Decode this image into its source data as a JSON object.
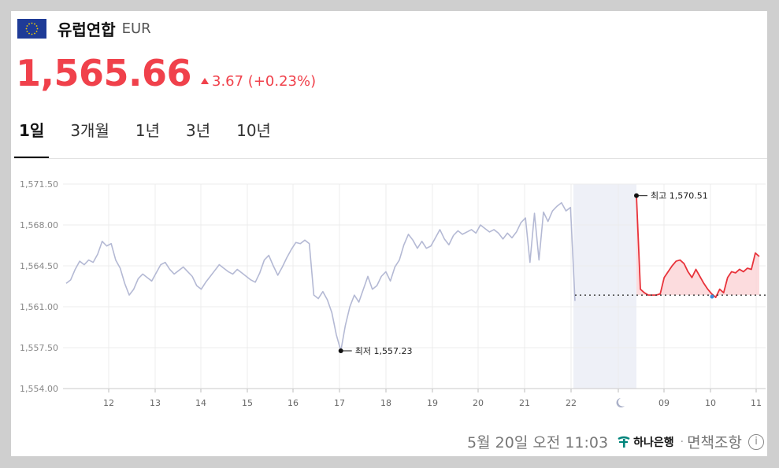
{
  "header": {
    "currency_name": "유럽연합",
    "currency_code": "EUR",
    "flag_icon": "eu-flag-icon"
  },
  "quote": {
    "price": "1,565.66",
    "change": "3.67 (+0.23%)",
    "direction": "up",
    "color_up": "#f0414b"
  },
  "tabs": [
    "1일",
    "3개월",
    "1년",
    "3년",
    "10년"
  ],
  "active_tab": "1일",
  "footer": {
    "timestamp": "5월 20일 오전 11:03",
    "bank": "하나은행",
    "disclaimer": "면책조항",
    "separator": "·"
  },
  "chart_data": {
    "type": "line",
    "y_ticks": [
      "1,571.50",
      "1,568.00",
      "1,564.50",
      "1,561.00",
      "1,557.50",
      "1,554.00"
    ],
    "ylim": [
      1554.0,
      1571.5
    ],
    "x_ticks": [
      "12",
      "13",
      "14",
      "15",
      "16",
      "17",
      "18",
      "19",
      "20",
      "21",
      "22",
      "moon-icon",
      "09",
      "10",
      "11"
    ],
    "annotations": {
      "high": "최고 1,570.51",
      "low": "최저 1,557.23"
    },
    "high_value": 1570.51,
    "low_value": 1557.23,
    "previous_close": 1562.0,
    "series": [
      {
        "period": "history",
        "color": "#b4b9d4",
        "values": [
          1563.0,
          1563.3,
          1564.2,
          1564.9,
          1564.6,
          1565.0,
          1564.8,
          1565.5,
          1566.6,
          1566.2,
          1566.4,
          1565.0,
          1564.3,
          1563.0,
          1562.0,
          1562.5,
          1563.4,
          1563.8,
          1563.5,
          1563.2,
          1563.9,
          1564.6,
          1564.8,
          1564.2,
          1563.8,
          1564.1,
          1564.4,
          1564.0,
          1563.6,
          1562.8,
          1562.5,
          1563.1,
          1563.6,
          1564.1,
          1564.6,
          1564.3,
          1564.0,
          1563.8,
          1564.2,
          1563.9,
          1563.6,
          1563.3,
          1563.1,
          1563.9,
          1565.0,
          1565.4,
          1564.5,
          1563.7,
          1564.4,
          1565.2,
          1565.9,
          1566.5,
          1566.4,
          1566.7,
          1566.4,
          1562.0,
          1561.7,
          1562.3,
          1561.6,
          1560.5,
          1558.6,
          1557.23,
          1559.4,
          1561.0,
          1562.0,
          1561.4,
          1562.5,
          1563.6,
          1562.5,
          1562.8,
          1563.6,
          1564.0,
          1563.2,
          1564.4,
          1565.0,
          1566.3,
          1567.2,
          1566.7,
          1566.0,
          1566.6,
          1566.0,
          1566.2,
          1566.9,
          1567.6,
          1566.8,
          1566.3,
          1567.1,
          1567.5,
          1567.2,
          1567.4,
          1567.6,
          1567.3,
          1568.0,
          1567.7,
          1567.4,
          1567.6,
          1567.3,
          1566.8,
          1567.3,
          1566.9,
          1567.4,
          1568.2,
          1568.6,
          1564.8,
          1569.0,
          1565.0,
          1569.1,
          1568.3,
          1569.2,
          1569.6,
          1569.9,
          1569.2,
          1569.5,
          1561.5
        ]
      },
      {
        "period": "today",
        "color": "#e8333b",
        "values": [
          1570.51,
          1562.5,
          1562.2,
          1562.0,
          1562.0,
          1562.0,
          1562.1,
          1563.5,
          1564.0,
          1564.5,
          1564.9,
          1565.0,
          1564.7,
          1564.0,
          1563.5,
          1564.2,
          1563.6,
          1563.0,
          1562.5,
          1562.1,
          1561.8,
          1562.5,
          1562.2,
          1563.5,
          1564.0,
          1563.9,
          1564.2,
          1564.0,
          1564.3,
          1564.2,
          1565.6,
          1565.3
        ]
      }
    ]
  }
}
